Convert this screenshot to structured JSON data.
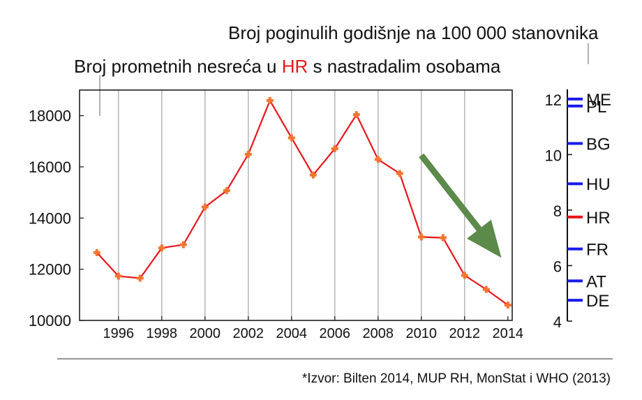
{
  "chart_data": [
    {
      "type": "line",
      "title_parts": [
        "Broj prometnih nesreća u ",
        "HR",
        " s nastradalim osobama"
      ],
      "title_highlight_color": "#e8151b",
      "x": [
        1995,
        1996,
        1997,
        1998,
        1999,
        2000,
        2001,
        2002,
        2003,
        2004,
        2005,
        2006,
        2007,
        2008,
        2009,
        2010,
        2011,
        2012,
        2013,
        2014
      ],
      "values": [
        12650,
        11730,
        11650,
        12830,
        12960,
        14430,
        15070,
        16490,
        18590,
        17130,
        15680,
        16710,
        18040,
        16290,
        15740,
        13260,
        13230,
        11760,
        11210,
        10600
      ],
      "xticks": [
        1996,
        1998,
        2000,
        2002,
        2004,
        2006,
        2008,
        2010,
        2012,
        2014
      ],
      "yticks": [
        10000,
        12000,
        14000,
        16000,
        18000
      ],
      "xlim": [
        1994.2,
        2014.2
      ],
      "ylim": [
        10000,
        19000
      ],
      "grid": "vertical",
      "line_color": "#e8151b",
      "marker_color": "#f47530",
      "trend_arrow_color": "#5b8a4a",
      "trend_arrow": "downward trend 2010-2014"
    },
    {
      "type": "scale",
      "title": "Broj poginulih godišnje na 100 000 stanovnika",
      "ylim": [
        4,
        12.3
      ],
      "yticks": [
        4,
        6,
        8,
        10,
        12
      ],
      "countries": [
        {
          "label": "ME",
          "value": 12.0,
          "color": "#1a1aee"
        },
        {
          "label": "PL",
          "value": 11.75,
          "color": "#1a1aee"
        },
        {
          "label": "BG",
          "value": 10.4,
          "color": "#1a1aee"
        },
        {
          "label": "HU",
          "value": 8.95,
          "color": "#1a1aee"
        },
        {
          "label": "HR",
          "value": 7.75,
          "color": "#e8151b"
        },
        {
          "label": "FR",
          "value": 6.6,
          "color": "#1a1aee"
        },
        {
          "label": "AT",
          "value": 5.45,
          "color": "#1a1aee"
        },
        {
          "label": "DE",
          "value": 4.75,
          "color": "#1a1aee"
        }
      ]
    }
  ],
  "source": "*Izvor: Bilten 2014, MUP RH, MonStat i WHO (2013)"
}
